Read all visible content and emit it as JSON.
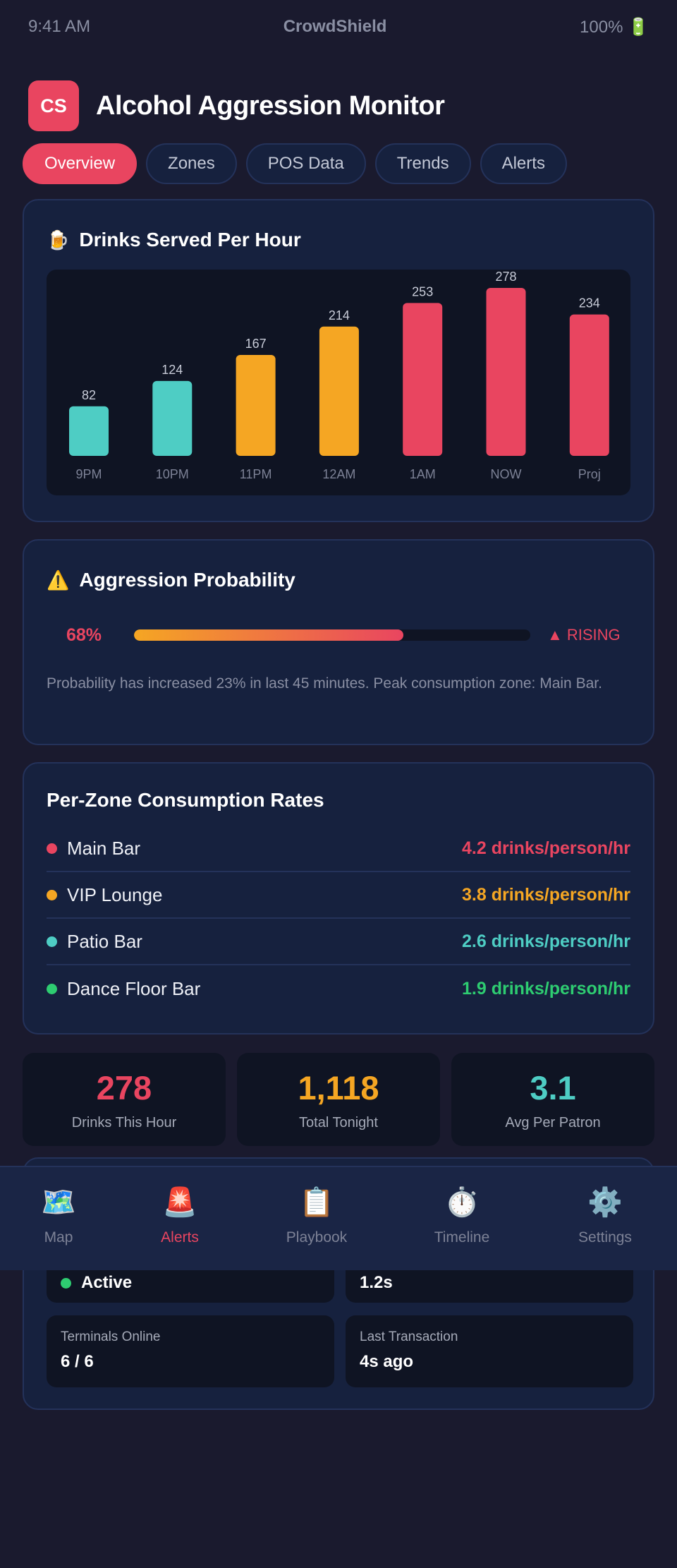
{
  "status_bar": {
    "time": "9:41 AM",
    "carrier": "CrowdShield",
    "battery": "100% 🔋"
  },
  "header": {
    "logo_text": "CS",
    "title": "Alcohol Aggression Monitor"
  },
  "tabs": [
    {
      "label": "Overview",
      "active": true
    },
    {
      "label": "Zones",
      "active": false
    },
    {
      "label": "POS Data",
      "active": false
    },
    {
      "label": "Trends",
      "active": false
    },
    {
      "label": "Alerts",
      "active": false
    }
  ],
  "drinks_card": {
    "icon": "🍺",
    "title": "Drinks Served Per Hour",
    "chart_data": {
      "type": "bar",
      "categories": [
        "9PM",
        "10PM",
        "11PM",
        "12AM",
        "1AM",
        "NOW",
        "Proj"
      ],
      "values": [
        82,
        124,
        167,
        214,
        253,
        278,
        234
      ],
      "colors": [
        "#4ecdc4",
        "#4ecdc4",
        "#f5a623",
        "#f5a623",
        "#e94560",
        "#e94560",
        "#e94560"
      ],
      "title": "Drinks Served Per Hour",
      "xlabel": "",
      "ylabel": "",
      "ylim": [
        0,
        278
      ],
      "grid": false
    }
  },
  "aggression_card": {
    "icon": "⚠️",
    "title": "Aggression Probability",
    "percent_text": "68%",
    "level": 0.68,
    "trend": "▲ RISING",
    "note": "Probability has increased 23% in last 45 minutes. Peak consumption zone: Main Bar."
  },
  "zones_card": {
    "title": "Per-Zone Consumption Rates",
    "zones": [
      {
        "name": "Main Bar",
        "rate": "4.2 drinks/person/hr",
        "color": "#e94560"
      },
      {
        "name": "VIP Lounge",
        "rate": "3.8 drinks/person/hr",
        "color": "#f5a623"
      },
      {
        "name": "Patio Bar",
        "rate": "2.6 drinks/person/hr",
        "color": "#4ecdc4"
      },
      {
        "name": "Dance Floor Bar",
        "rate": "1.9 drinks/person/hr",
        "color": "#2ecc71"
      }
    ]
  },
  "stats": [
    {
      "value": "278",
      "label": "Drinks This Hour",
      "color": "#e94560"
    },
    {
      "value": "1,118",
      "label": "Total Tonight",
      "color": "#f5a623"
    },
    {
      "value": "3.1",
      "label": "Avg Per Patron",
      "color": "#4ecdc4"
    }
  ],
  "pos_card": {
    "status_value": "Active",
    "latency_value": "1.2s",
    "terminals_label": "Terminals Online",
    "terminals_value": "6 / 6",
    "last_txn_label": "Last Transaction",
    "last_txn_value": "4s ago"
  },
  "bottom_nav": [
    {
      "icon": "🗺️",
      "icon_name": "map-icon",
      "label": "Map",
      "active": false
    },
    {
      "icon": "🚨",
      "icon_name": "alert-siren-icon",
      "label": "Alerts",
      "active": true
    },
    {
      "icon": "📋",
      "icon_name": "clipboard-icon",
      "label": "Playbook",
      "active": false
    },
    {
      "icon": "⏱️",
      "icon_name": "stopwatch-icon",
      "label": "Timeline",
      "active": false
    },
    {
      "icon": "⚙️",
      "icon_name": "gear-icon",
      "label": "Settings",
      "active": false
    }
  ]
}
